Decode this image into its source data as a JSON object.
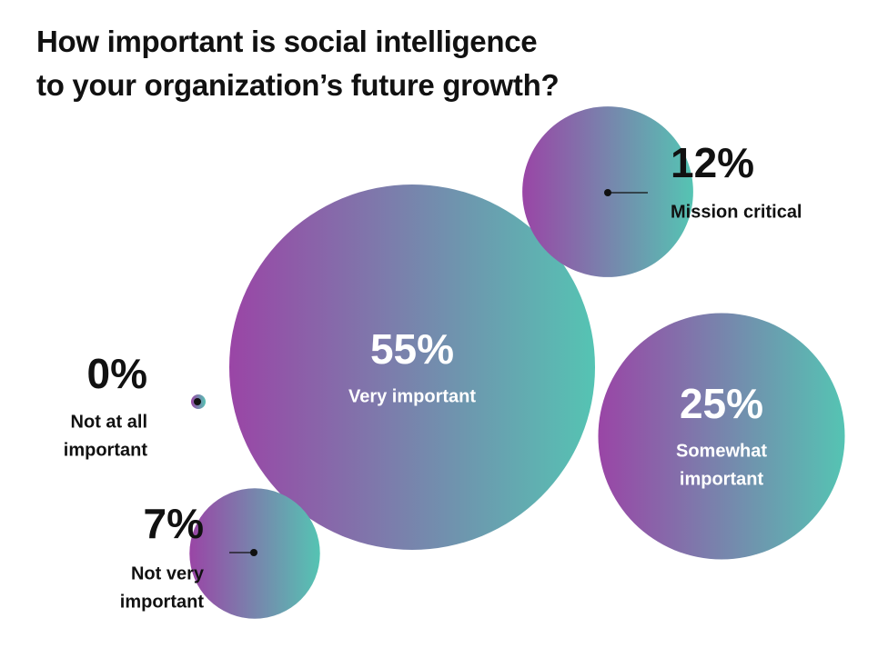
{
  "title_lines": [
    "How important is social intelligence",
    "to your organization’s future growth?"
  ],
  "colors": {
    "gradient_start": "#9A45A6",
    "gradient_end": "#55C4B3",
    "text": "#111111",
    "inner_text": "#ffffff"
  },
  "chart_data": {
    "type": "bubble",
    "title": "How important is social intelligence to your organization’s future growth?",
    "unit": "%",
    "series": [
      {
        "label_lines": [
          "Very important"
        ],
        "percent_label": "55%",
        "value": 55
      },
      {
        "label_lines": [
          "Somewhat",
          "important"
        ],
        "percent_label": "25%",
        "value": 25
      },
      {
        "label_lines": [
          "Mission critical"
        ],
        "percent_label": "12%",
        "value": 12
      },
      {
        "label_lines": [
          "Not very",
          "important"
        ],
        "percent_label": "7%",
        "value": 7
      },
      {
        "label_lines": [
          "Not at all",
          "important"
        ],
        "percent_label": "0%",
        "value": 0
      }
    ]
  }
}
